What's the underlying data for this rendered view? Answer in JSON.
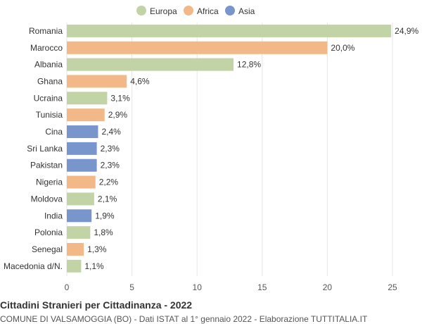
{
  "chart_data": {
    "type": "bar",
    "orientation": "horizontal",
    "title": "Cittadini Stranieri per Cittadinanza - 2022",
    "subtitle": "COMUNE DI VALSAMOGGIA (BO) - Dati ISTAT al 1° gennaio 2022 - Elaborazione TUTTITALIA.IT",
    "legend": [
      {
        "name": "Europa",
        "color": "#c2d4a6"
      },
      {
        "name": "Africa",
        "color": "#f2b887"
      },
      {
        "name": "Asia",
        "color": "#7895cc"
      }
    ],
    "legend_position": "top-center",
    "categories": [
      "Romania",
      "Marocco",
      "Albania",
      "Ghana",
      "Ucraina",
      "Tunisia",
      "Cina",
      "Sri Lanka",
      "Pakistan",
      "Nigeria",
      "Moldova",
      "India",
      "Polonia",
      "Senegal",
      "Macedonia d/N."
    ],
    "values": [
      24.9,
      20.0,
      12.8,
      4.6,
      3.1,
      2.9,
      2.4,
      2.3,
      2.3,
      2.2,
      2.1,
      1.9,
      1.8,
      1.3,
      1.1
    ],
    "value_labels": [
      "24,9%",
      "20,0%",
      "12,8%",
      "4,6%",
      "3,1%",
      "2,9%",
      "2,4%",
      "2,3%",
      "2,3%",
      "2,2%",
      "2,1%",
      "1,9%",
      "1,8%",
      "1,3%",
      "1,1%"
    ],
    "groups": [
      "Europa",
      "Africa",
      "Europa",
      "Africa",
      "Europa",
      "Africa",
      "Asia",
      "Asia",
      "Asia",
      "Africa",
      "Europa",
      "Asia",
      "Europa",
      "Africa",
      "Europa"
    ],
    "xlim": [
      0,
      25
    ],
    "xticks": [
      0,
      5,
      10,
      15,
      20,
      25
    ],
    "grid": true
  }
}
